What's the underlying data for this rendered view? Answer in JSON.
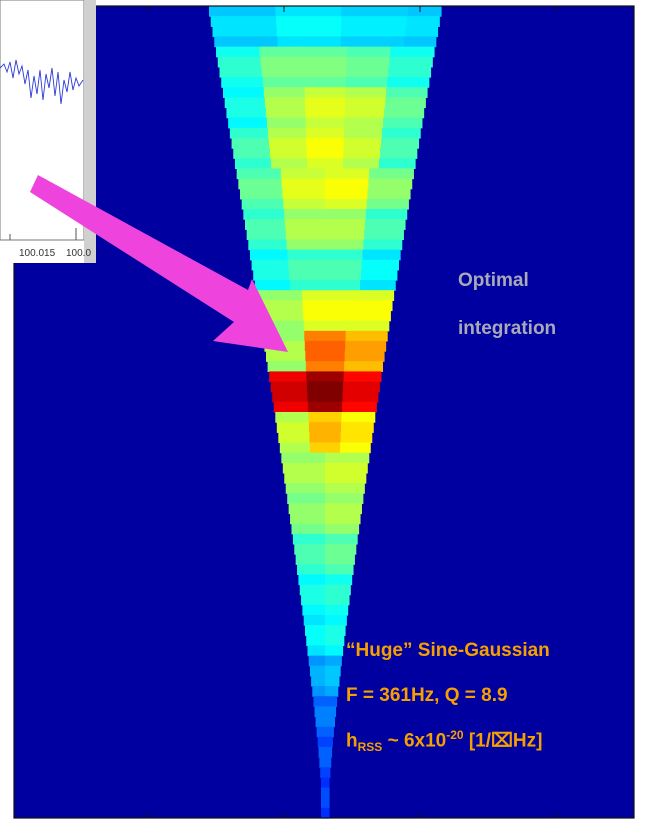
{
  "inset": {
    "tick_labels": [
      "100.015",
      "100.0"
    ]
  },
  "annotations": {
    "optimal_line1": "Optimal",
    "optimal_line2": "integration",
    "signal_title": "“Huge” Sine-Gaussian",
    "signal_params": "F = 361Hz, Q = 8.9",
    "hrss_h": "h",
    "hrss_sub": "RSS",
    "hrss_mid": " ~ 6x10",
    "hrss_sup": "-20",
    "hrss_tail": " [1/",
    "hrss_glyph": "⌧",
    "hrss_end": "Hz]"
  },
  "colors": {
    "background": "#0000a0",
    "arrow": "#ee44dd",
    "annotation": "#f5a000",
    "label_gray": "#a9a9b8"
  },
  "chart_data": {
    "type": "heatmap",
    "title": "",
    "xlabel": "",
    "ylabel": "",
    "colormap": "jet",
    "levels": [
      {
        "level": 1,
        "values": [
          0.35,
          0.35,
          0.38,
          0.38,
          0.36,
          0.36,
          0.35
        ]
      },
      {
        "level": 2,
        "values": [
          0.42,
          0.5,
          0.5,
          0.48,
          0.42
        ]
      },
      {
        "level": 3,
        "values": [
          0.4,
          0.55,
          0.6,
          0.58,
          0.48
        ]
      },
      {
        "level": 4,
        "values": [
          0.45,
          0.58,
          0.62,
          0.58,
          0.45
        ]
      },
      {
        "level": 5,
        "values": [
          0.48,
          0.6,
          0.62,
          0.52
        ]
      },
      {
        "level": 6,
        "values": [
          0.45,
          0.55,
          0.55,
          0.45
        ]
      },
      {
        "level": 7,
        "values": [
          0.4,
          0.45,
          0.45,
          0.38
        ]
      },
      {
        "level": 8,
        "values": [
          0.55,
          0.62,
          0.62
        ]
      },
      {
        "level": 9,
        "values": [
          0.55,
          0.78,
          0.72
        ]
      },
      {
        "level": 10,
        "values": [
          0.92,
          1.0,
          0.9
        ]
      },
      {
        "level": 11,
        "values": [
          0.58,
          0.7,
          0.65
        ]
      },
      {
        "level": 12,
        "values": [
          0.55,
          0.58
        ]
      },
      {
        "level": 13,
        "values": [
          0.52,
          0.55
        ]
      },
      {
        "level": 14,
        "values": [
          0.45,
          0.48
        ]
      },
      {
        "level": 15,
        "values": [
          0.4,
          0.42
        ]
      },
      {
        "level": 16,
        "values": [
          0.38,
          0.4
        ]
      },
      {
        "level": 17,
        "values": [
          0.3,
          0.32
        ]
      },
      {
        "level": 18,
        "values": [
          0.25
        ]
      },
      {
        "level": 19,
        "values": [
          0.22
        ]
      },
      {
        "level": 20,
        "values": [
          0.2
        ]
      }
    ]
  }
}
